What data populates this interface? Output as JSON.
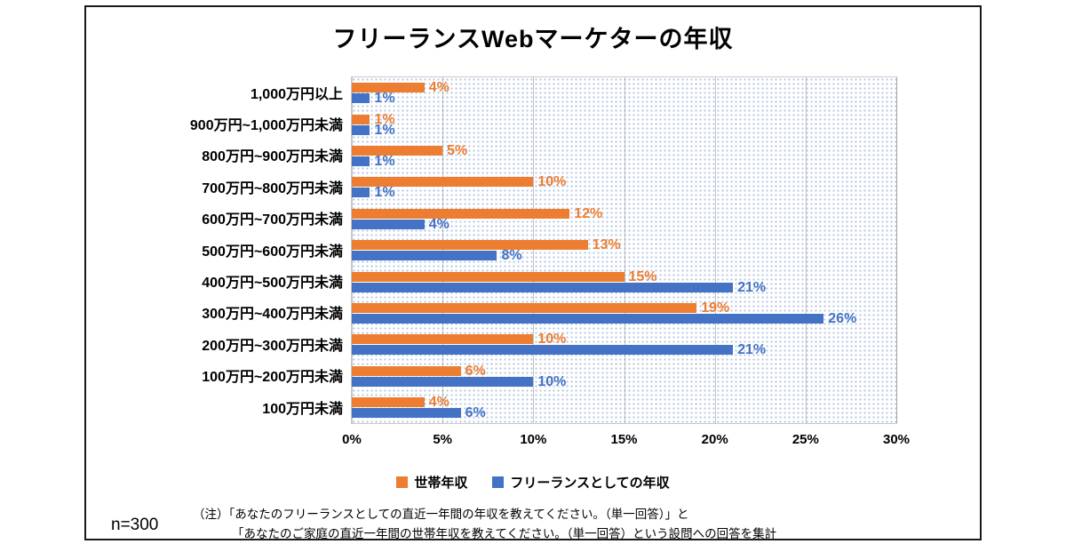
{
  "page": {
    "sample_size": "n=300",
    "note_lines": [
      "（注）「あなたのフリーランスとしての直近一年間の年収を教えてください。（単一回答）」と",
      "「あなたのご家庭の直近一年間の世帯年収を教えてください。（単一回答）という設問への回答を集計"
    ]
  },
  "chart_data": {
    "type": "bar",
    "orientation": "horizontal",
    "title": "フリーランスWebマーケターの年収",
    "categories": [
      "1,000万円以上",
      "900万円~1,000万円未満",
      "800万円~900万円未満",
      "700万円~800万円未満",
      "600万円~700万円未満",
      "500万円~600万円未満",
      "400万円~500万円未満",
      "300万円~400万円未満",
      "200万円~300万円未満",
      "100万円~200万円未満",
      "100万円未満"
    ],
    "series": [
      {
        "key": "household",
        "name": "世帯年収",
        "color": "#ED7D31",
        "values": [
          4,
          1,
          5,
          10,
          12,
          13,
          15,
          19,
          10,
          6,
          4
        ]
      },
      {
        "key": "freelance",
        "name": "フリーランスとしての年収",
        "color": "#4472C4",
        "values": [
          1,
          1,
          1,
          1,
          4,
          8,
          21,
          26,
          21,
          10,
          6
        ]
      }
    ],
    "xlabel": "",
    "ylabel": "",
    "xlim": [
      0,
      30
    ],
    "x_ticks": [
      "0%",
      "5%",
      "10%",
      "15%",
      "20%",
      "25%",
      "30%"
    ],
    "value_suffix": "%",
    "legend_position": "bottom",
    "grid": true,
    "plot_background_pattern": "dotted"
  }
}
